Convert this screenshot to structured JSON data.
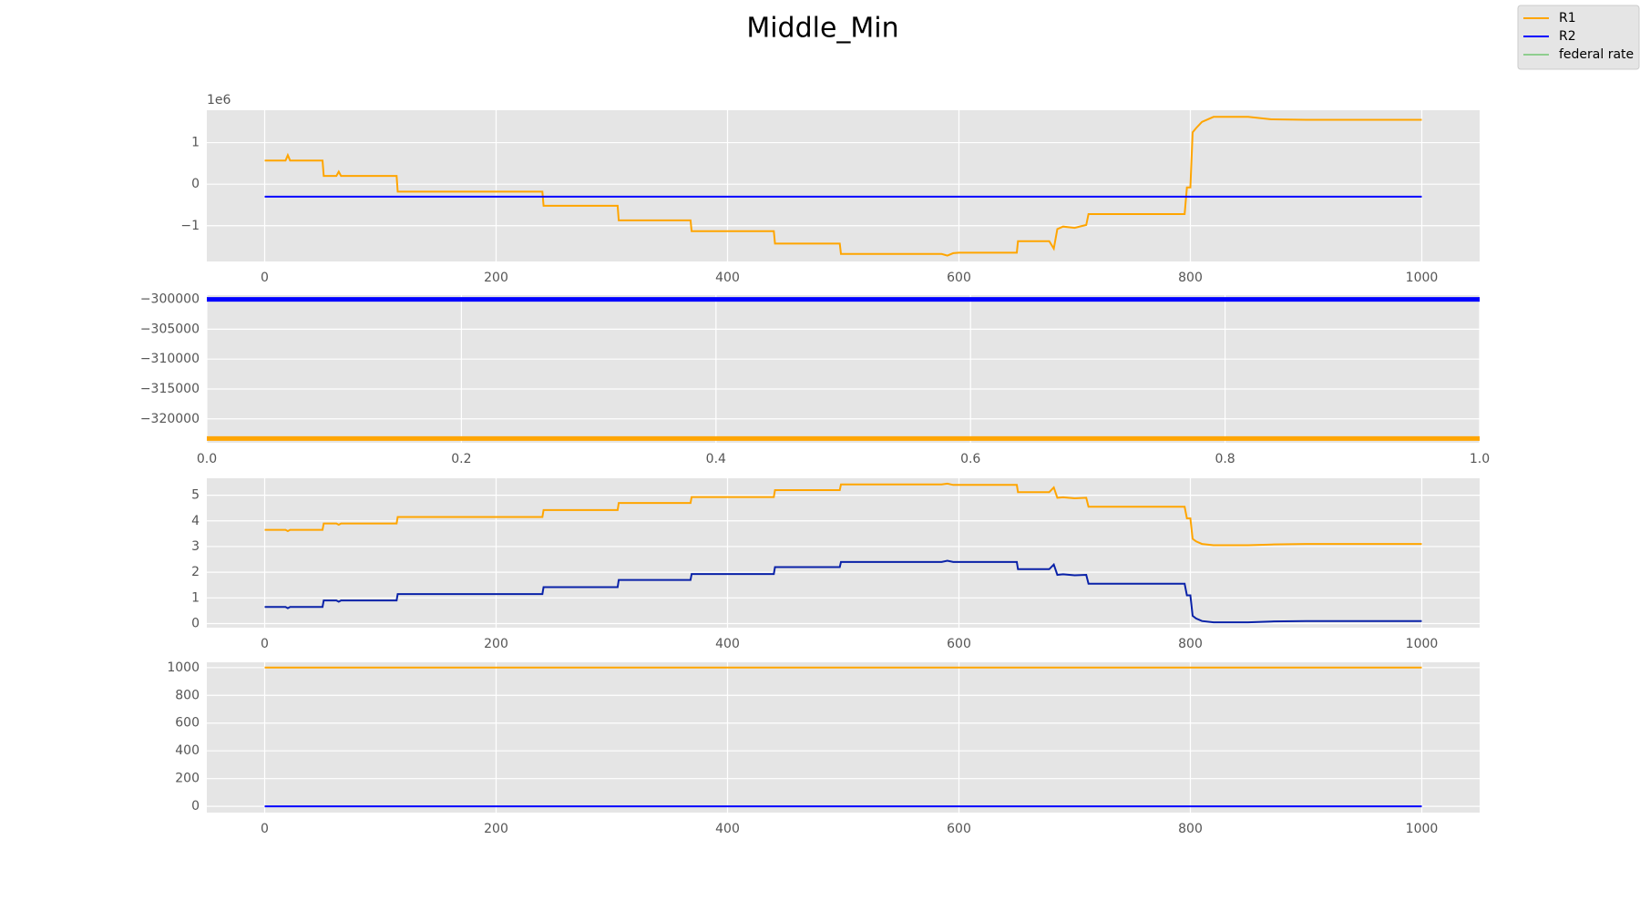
{
  "title": "Middle_Min",
  "legend": {
    "loc": "upper right",
    "entries": [
      {
        "name": "R1",
        "color": "orange"
      },
      {
        "name": "R2",
        "color": "blue"
      },
      {
        "name": "federal rate",
        "color": "#8fce8f"
      }
    ]
  },
  "chart_data": [
    {
      "type": "line",
      "offset_label": "1e6",
      "x": [
        0,
        18,
        20,
        22,
        50,
        51,
        62,
        64,
        66,
        114,
        115,
        240,
        241,
        305,
        306,
        368,
        369,
        440,
        441,
        497,
        498,
        585,
        590,
        595,
        600,
        650,
        651,
        678,
        682,
        685,
        690,
        700,
        710,
        712,
        795,
        797,
        800,
        802,
        805,
        810,
        820,
        850,
        870,
        900,
        1000
      ],
      "series": [
        {
          "color": "orange",
          "values": [
            0.57,
            0.57,
            0.7,
            0.57,
            0.57,
            0.2,
            0.2,
            0.3,
            0.2,
            0.2,
            -0.18,
            -0.18,
            -0.52,
            -0.52,
            -0.87,
            -0.87,
            -1.13,
            -1.13,
            -1.43,
            -1.43,
            -1.68,
            -1.68,
            -1.72,
            -1.66,
            -1.65,
            -1.65,
            -1.37,
            -1.37,
            -1.55,
            -1.08,
            -1.02,
            -1.05,
            -0.98,
            -0.72,
            -0.72,
            -0.08,
            -0.08,
            1.25,
            1.35,
            1.5,
            1.62,
            1.62,
            1.56,
            1.55,
            1.55
          ]
        }
      ],
      "extra_series": [
        {
          "color": "blue",
          "x": [
            0,
            1000
          ],
          "values": [
            -0.3,
            -0.3
          ]
        }
      ],
      "xlim": [
        -50,
        1050
      ],
      "ylim": [
        -1.86,
        1.78
      ],
      "xticks": [
        0,
        200,
        400,
        600,
        800,
        1000
      ],
      "yticks": [
        {
          "value": -1,
          "label": "−1"
        },
        0,
        1
      ],
      "grid": true
    },
    {
      "type": "hline",
      "series": [
        {
          "color": "blue",
          "values": [
            -300000
          ]
        },
        {
          "color": "orange",
          "values": [
            -323300
          ]
        }
      ],
      "xlim": [
        0,
        1
      ],
      "ylim": [
        -324000,
        -299300
      ],
      "xticks": [
        {
          "value": 0,
          "label": "0.0"
        },
        {
          "value": 0.2,
          "label": "0.2"
        },
        {
          "value": 0.4,
          "label": "0.4"
        },
        {
          "value": 0.6,
          "label": "0.6"
        },
        {
          "value": 0.8,
          "label": "0.8"
        },
        {
          "value": 1,
          "label": "1.0"
        }
      ],
      "yticks": [
        {
          "value": -320000,
          "label": "−320000"
        },
        {
          "value": -315000,
          "label": "−315000"
        },
        {
          "value": -310000,
          "label": "−310000"
        },
        {
          "value": -305000,
          "label": "−305000"
        },
        {
          "value": -300000,
          "label": "−300000"
        }
      ],
      "grid": true
    },
    {
      "type": "line",
      "x": [
        0,
        18,
        20,
        22,
        50,
        51,
        62,
        64,
        66,
        114,
        115,
        240,
        241,
        305,
        306,
        368,
        369,
        440,
        441,
        497,
        498,
        585,
        590,
        595,
        600,
        650,
        651,
        678,
        682,
        685,
        690,
        700,
        710,
        712,
        795,
        797,
        800,
        802,
        805,
        810,
        820,
        850,
        870,
        900,
        1000
      ],
      "series": [
        {
          "color": "orange",
          "values": [
            3.65,
            3.65,
            3.6,
            3.65,
            3.65,
            3.9,
            3.9,
            3.85,
            3.9,
            3.9,
            4.15,
            4.15,
            4.42,
            4.42,
            4.7,
            4.7,
            4.93,
            4.93,
            5.2,
            5.2,
            5.42,
            5.42,
            5.45,
            5.4,
            5.4,
            5.4,
            5.12,
            5.12,
            5.3,
            4.9,
            4.92,
            4.88,
            4.9,
            4.55,
            4.55,
            4.1,
            4.1,
            3.3,
            3.2,
            3.1,
            3.05,
            3.05,
            3.08,
            3.1,
            3.1
          ]
        },
        {
          "color": "#0a22a8",
          "values": [
            0.65,
            0.65,
            0.6,
            0.65,
            0.65,
            0.9,
            0.9,
            0.85,
            0.9,
            0.9,
            1.15,
            1.15,
            1.42,
            1.42,
            1.7,
            1.7,
            1.93,
            1.93,
            2.2,
            2.2,
            2.4,
            2.4,
            2.45,
            2.4,
            2.4,
            2.4,
            2.12,
            2.12,
            2.3,
            1.9,
            1.92,
            1.88,
            1.9,
            1.55,
            1.55,
            1.1,
            1.1,
            0.3,
            0.2,
            0.1,
            0.05,
            0.05,
            0.08,
            0.1,
            0.1
          ]
        }
      ],
      "xlim": [
        -50,
        1050
      ],
      "ylim": [
        -0.16,
        5.66
      ],
      "xticks": [
        0,
        200,
        400,
        600,
        800,
        1000
      ],
      "yticks": [
        0,
        1,
        2,
        3,
        4,
        5
      ],
      "grid": true
    },
    {
      "type": "line",
      "x": [
        0,
        1000
      ],
      "series": [
        {
          "color": "orange",
          "values": [
            1000,
            1000
          ]
        },
        {
          "color": "blue",
          "values": [
            0,
            0
          ]
        }
      ],
      "xlim": [
        -50,
        1050
      ],
      "ylim": [
        -45,
        1038
      ],
      "xticks": [
        0,
        200,
        400,
        600,
        800,
        1000
      ],
      "yticks": [
        0,
        200,
        400,
        600,
        800,
        1000
      ],
      "grid": true
    }
  ]
}
